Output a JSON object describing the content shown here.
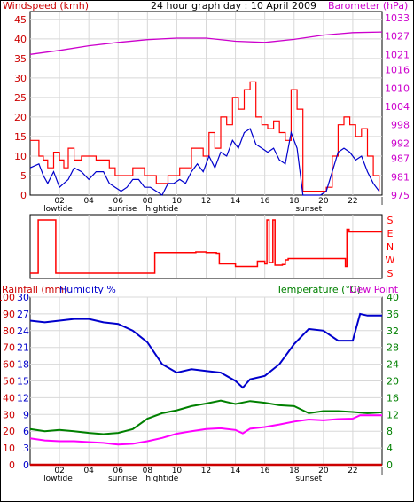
{
  "colors": {
    "windspeed_axis": "#cc0000",
    "barometer": "#cc00cc",
    "gust": "#ff0000",
    "average": "#0000cc",
    "direction": "#ff0000",
    "rainfall": "#cc0000",
    "humidity": "#0000cc",
    "temperature": "#008000",
    "dewpoint": "#ff00ff",
    "grid": "#d8d8d8",
    "text": "#000000"
  },
  "top": {
    "left_label": "Windspeed (kmh)",
    "title": "24 hour graph day : 10 April 2009",
    "right_label": "Barometer (hPa)"
  },
  "bottom": {
    "rain_label": "Rainfall (mm)",
    "humidity_label": "Humidity %",
    "temp_label": "Temperature (°C)",
    "dew_label": "Dew Point"
  },
  "time_axis": {
    "hour_labels": [
      "02",
      "04",
      "06",
      "08",
      "10",
      "12",
      "14",
      "16",
      "18",
      "20",
      "22",
      "|"
    ],
    "events": [
      {
        "label": "lowtide",
        "hour": 1.9
      },
      {
        "label": "sunrise",
        "hour": 6.3
      },
      {
        "label": "hightide",
        "hour": 9.0
      },
      {
        "label": "sunset",
        "hour": 19.0
      }
    ]
  },
  "direction_axis": {
    "labels": [
      "S",
      "E",
      "N",
      "W",
      "S"
    ],
    "scale": [
      180,
      90,
      0,
      270,
      180
    ]
  },
  "chart_data": [
    {
      "type": "line",
      "name": "wind_and_pressure",
      "title": "24 hour graph day : 10 April 2009",
      "x_unit": "hour",
      "x_range": [
        0,
        24
      ],
      "left_axis": {
        "label": "Windspeed (kmh)",
        "ticks": [
          0,
          5,
          10,
          15,
          20,
          25,
          30,
          35,
          40,
          45
        ],
        "range": [
          0,
          47
        ]
      },
      "right_axis": {
        "label": "Barometer (hPa)",
        "ticks": [
          975,
          981,
          987,
          992,
          998,
          1004,
          1010,
          1016,
          1021,
          1027,
          1033
        ],
        "range": [
          975,
          1035
        ]
      },
      "series": [
        {
          "name": "gust",
          "axis": "left",
          "style": "step",
          "x": [
            0.0,
            0.6,
            0.9,
            1.2,
            1.6,
            2.0,
            2.3,
            2.6,
            3.0,
            3.5,
            4.0,
            4.5,
            5.0,
            5.4,
            5.8,
            6.2,
            6.6,
            7.0,
            7.4,
            7.8,
            8.2,
            8.6,
            9.0,
            9.4,
            9.8,
            10.2,
            10.6,
            11.0,
            11.4,
            11.8,
            12.2,
            12.6,
            13.0,
            13.4,
            13.8,
            14.2,
            14.6,
            15.0,
            15.4,
            15.8,
            16.2,
            16.6,
            17.0,
            17.4,
            17.8,
            18.2,
            18.6,
            19.0,
            19.4,
            19.8,
            20.2,
            20.6,
            21.0,
            21.4,
            21.8,
            22.2,
            22.6,
            23.0,
            23.4,
            23.8
          ],
          "values": [
            14,
            10,
            9,
            7,
            11,
            9,
            7,
            12,
            9,
            10,
            10,
            9,
            9,
            7,
            5,
            5,
            5,
            7,
            7,
            5,
            5,
            3,
            3,
            5,
            5,
            7,
            7,
            12,
            12,
            10,
            16,
            12,
            20,
            18,
            25,
            22,
            27,
            29,
            20,
            18,
            17,
            19,
            16,
            14,
            27,
            22,
            1,
            1,
            1,
            1,
            2,
            10,
            18,
            20,
            18,
            15,
            17,
            10,
            5,
            1
          ]
        },
        {
          "name": "average",
          "axis": "left",
          "style": "line",
          "x": [
            0.0,
            0.6,
            0.9,
            1.2,
            1.6,
            2.0,
            2.3,
            2.6,
            3.0,
            3.5,
            4.0,
            4.5,
            5.0,
            5.4,
            5.8,
            6.2,
            6.6,
            7.0,
            7.4,
            7.8,
            8.2,
            8.6,
            9.0,
            9.4,
            9.8,
            10.2,
            10.6,
            11.0,
            11.4,
            11.8,
            12.2,
            12.6,
            13.0,
            13.4,
            13.8,
            14.2,
            14.6,
            15.0,
            15.4,
            15.8,
            16.2,
            16.6,
            17.0,
            17.4,
            17.8,
            18.2,
            18.6,
            19.0,
            19.4,
            19.8,
            20.2,
            20.6,
            21.0,
            21.4,
            21.8,
            22.2,
            22.6,
            23.0,
            23.4,
            23.8
          ],
          "values": [
            7,
            8,
            5,
            3,
            6,
            2,
            3,
            4,
            7,
            6,
            4,
            6,
            6,
            3,
            2,
            1,
            2,
            4,
            4,
            2,
            2,
            1,
            0,
            3,
            3,
            4,
            3,
            6,
            8,
            6,
            10,
            7,
            11,
            10,
            14,
            12,
            16,
            17,
            13,
            12,
            11,
            12,
            9,
            8,
            16,
            12,
            0,
            0,
            0,
            0,
            1,
            6,
            11,
            12,
            11,
            9,
            10,
            6,
            3,
            1
          ]
        },
        {
          "name": "barometer",
          "axis": "right",
          "style": "line",
          "x": [
            0,
            2,
            4,
            6,
            8,
            10,
            12,
            14,
            16,
            18,
            20,
            22,
            24
          ],
          "values": [
            1021,
            1022.3,
            1023.8,
            1024.9,
            1025.8,
            1026.3,
            1026.3,
            1025.3,
            1024.9,
            1025.9,
            1027.3,
            1028.1,
            1028.3
          ]
        }
      ]
    },
    {
      "type": "line",
      "name": "wind_direction",
      "x_unit": "hour",
      "x_range": [
        0,
        24
      ],
      "y_axis": {
        "labels": [
          "S",
          "E",
          "N",
          "W",
          "S"
        ],
        "range_position": [
          0,
          4
        ]
      },
      "series": [
        {
          "name": "direction",
          "style": "step",
          "x": [
            0,
            0.3,
            0.55,
            1.3,
            1.75,
            2.0,
            8.4,
            8.5,
            11.2,
            11.3,
            12.0,
            12.7,
            12.9,
            14.0,
            15.5,
            16.0,
            16.15,
            16.3,
            16.55,
            16.7,
            17.2,
            17.4,
            17.6,
            21.4,
            21.5,
            21.6,
            21.75,
            24
          ],
          "position": [
            4,
            4,
            0,
            0,
            4,
            4,
            4,
            2.45,
            2.45,
            2.4,
            2.45,
            2.5,
            3.3,
            3.5,
            3.1,
            3.3,
            0,
            3.2,
            0,
            3.4,
            3.35,
            3.0,
            2.9,
            2.9,
            3.5,
            0.7,
            0.9,
            0.9
          ]
        }
      ]
    },
    {
      "type": "line",
      "name": "rain_humidity_temperature",
      "x_unit": "hour",
      "x_range": [
        0,
        24
      ],
      "left_axes": [
        {
          "label": "Rainfall (mm)",
          "ticks": [
            0,
            10,
            20,
            30,
            40,
            50,
            60,
            70,
            80,
            90,
            100
          ]
        },
        {
          "label": "Humidity %",
          "ticks": [
            0,
            3,
            6,
            9,
            12,
            15,
            18,
            21,
            24,
            27,
            30
          ]
        }
      ],
      "right_axes": [
        {
          "label": "Temperature (°C)",
          "ticks": [
            0,
            4,
            8,
            12,
            16,
            20,
            24,
            28,
            32,
            36,
            40
          ]
        },
        {
          "label": "Dew Point",
          "ticks": [
            0,
            4,
            8,
            12,
            16,
            20,
            24,
            28,
            32,
            36,
            40
          ]
        }
      ],
      "series": [
        {
          "name": "humidity",
          "unit": "%",
          "x": [
            0,
            1,
            2,
            3,
            4,
            5,
            6,
            7,
            8,
            9,
            10,
            11,
            12,
            13,
            14,
            14.5,
            15,
            16,
            17,
            18,
            19,
            20,
            21,
            22,
            22.5,
            23,
            24
          ],
          "values": [
            86,
            85,
            86,
            87,
            87,
            85,
            84,
            80,
            73,
            60,
            55,
            57,
            56,
            55,
            50,
            46,
            51,
            53,
            60,
            72,
            81,
            80,
            74,
            74,
            90,
            89,
            89
          ]
        },
        {
          "name": "temperature",
          "unit": "°C",
          "x": [
            0,
            1,
            2,
            3,
            4,
            5,
            6,
            7,
            8,
            9,
            10,
            11,
            12,
            13,
            14,
            15,
            16,
            17,
            18,
            19,
            20,
            21,
            22,
            23,
            24
          ],
          "values": [
            8.5,
            8.0,
            8.3,
            8.0,
            7.6,
            7.3,
            7.6,
            8.5,
            11.0,
            12.3,
            13.0,
            14.0,
            14.6,
            15.3,
            14.5,
            15.2,
            14.8,
            14.2,
            14.0,
            12.3,
            12.8,
            12.8,
            12.6,
            12.3,
            12.5
          ]
        },
        {
          "name": "dewpoint",
          "unit": "°C",
          "x": [
            0,
            1,
            2,
            3,
            4,
            5,
            6,
            7,
            8,
            9,
            10,
            11,
            12,
            13,
            14,
            14.5,
            15,
            16,
            17,
            18,
            19,
            20,
            21,
            22,
            22.5,
            23,
            24
          ],
          "values": [
            6.3,
            5.8,
            5.6,
            5.6,
            5.4,
            5.2,
            4.8,
            5.0,
            5.6,
            6.4,
            7.4,
            8.0,
            8.5,
            8.7,
            8.3,
            7.5,
            8.6,
            9.0,
            9.6,
            10.3,
            10.8,
            10.6,
            10.9,
            11.0,
            11.8,
            11.8,
            11.8
          ]
        },
        {
          "name": "rainfall",
          "unit": "mm",
          "x": [
            0,
            24
          ],
          "values": [
            0,
            0
          ]
        }
      ]
    }
  ]
}
